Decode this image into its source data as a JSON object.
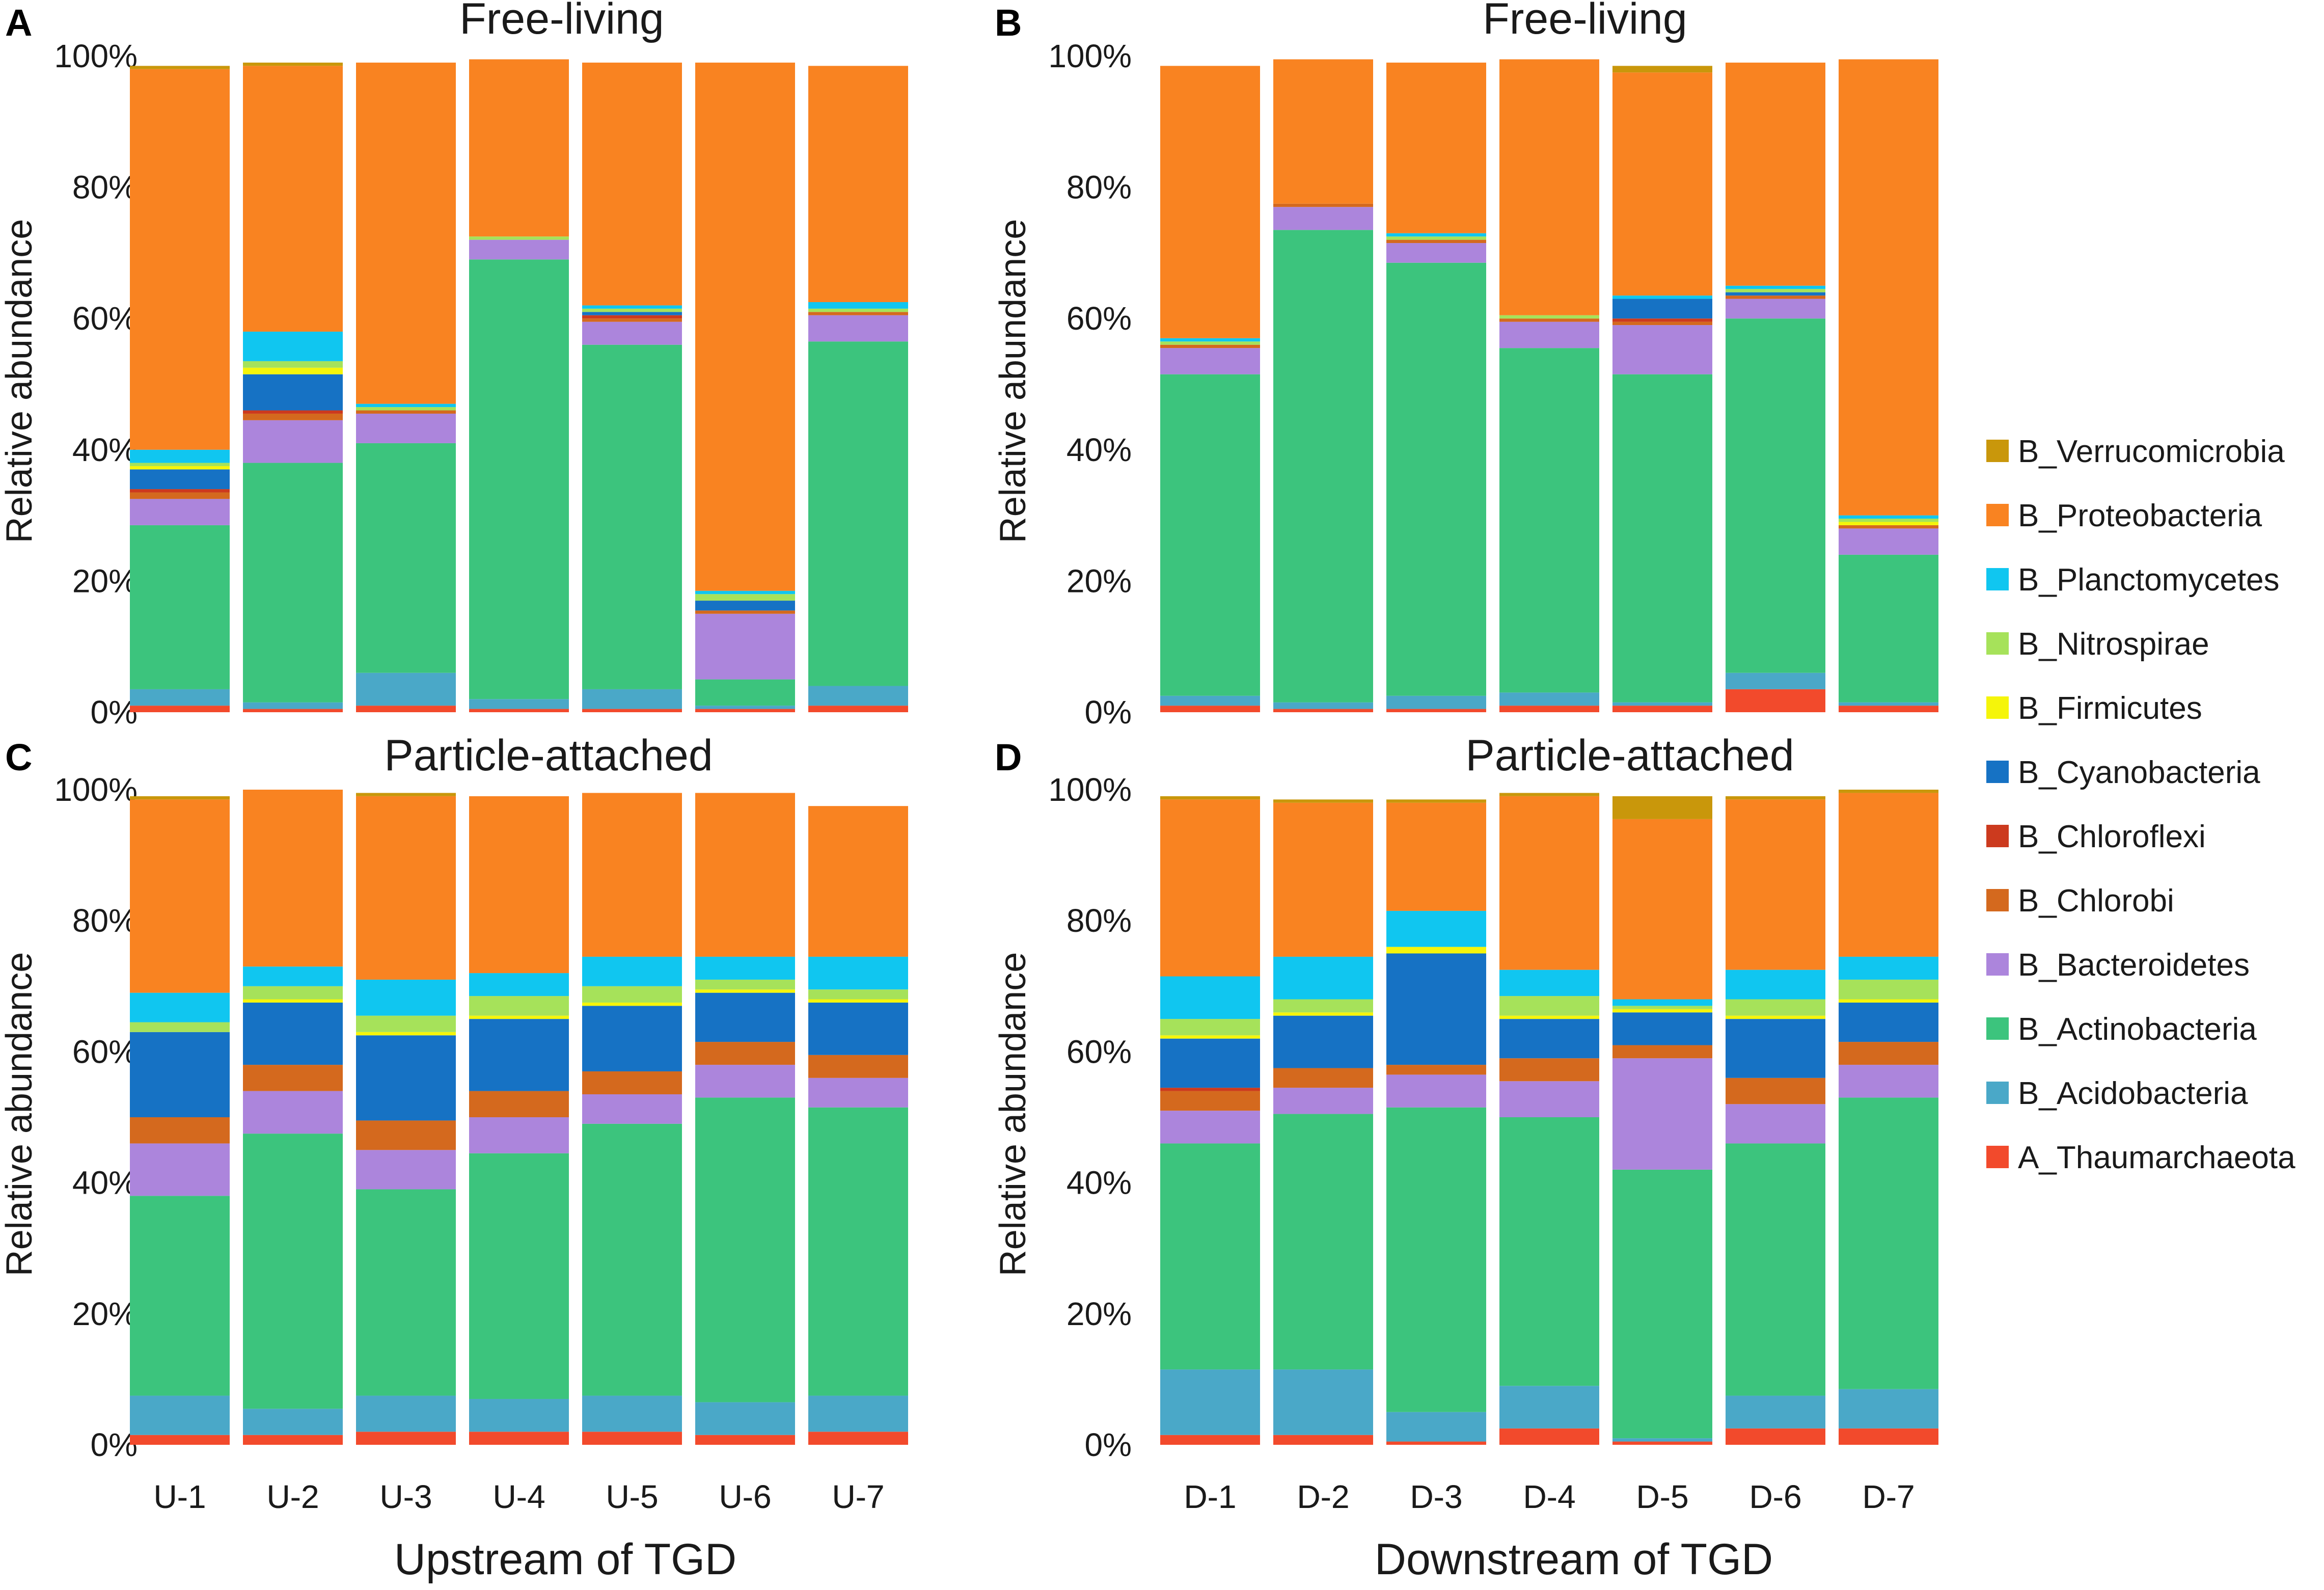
{
  "colors": {
    "A_Thaumarchaeota": "#f24a2c",
    "B_Acidobacteria": "#4aa8c8",
    "B_Actinobacteria": "#3cc47d",
    "B_Bacteroidetes": "#ac85dc",
    "B_Chlorobi": "#d4691e",
    "B_Chloroflexi": "#cc3a1e",
    "B_Cyanobacteria": "#1672c4",
    "B_Firmicutes": "#f5f50a",
    "B_Nitrospirae": "#a6e25a",
    "B_Planctomycetes": "#10c6f0",
    "B_Proteobacteria": "#f98321",
    "B_Verrucomicrobia": "#c9970b"
  },
  "legend": [
    "B_Verrucomicrobia",
    "B_Proteobacteria",
    "B_Planctomycetes",
    "B_Nitrospirae",
    "B_Firmicutes",
    "B_Cyanobacteria",
    "B_Chloroflexi",
    "B_Chlorobi",
    "B_Bacteroidetes",
    "B_Actinobacteria",
    "B_Acidobacteria",
    "A_Thaumarchaeota"
  ],
  "chart_data": [
    {
      "type": "bar",
      "stacked": true,
      "panel": "A",
      "title": "Free-living",
      "xlabel": "",
      "ylabel": "Relative abundance",
      "ylim": [
        0,
        100
      ],
      "yticks": [
        "0%",
        "20%",
        "40%",
        "60%",
        "80%",
        "100%"
      ],
      "categories": [
        "U-1",
        "U-2",
        "U-3",
        "U-4",
        "U-5",
        "U-6",
        "U-7"
      ],
      "series": [
        {
          "name": "A_Thaumarchaeota",
          "values": [
            1,
            0.5,
            1,
            0.5,
            0.5,
            0.5,
            1
          ]
        },
        {
          "name": "B_Acidobacteria",
          "values": [
            2.5,
            1,
            5,
            1.5,
            3,
            0.5,
            3
          ]
        },
        {
          "name": "B_Actinobacteria",
          "values": [
            25,
            36.5,
            35,
            67,
            52.5,
            4,
            52.5
          ]
        },
        {
          "name": "B_Bacteroidetes",
          "values": [
            4,
            6.5,
            4.5,
            3,
            3.5,
            10,
            4
          ]
        },
        {
          "name": "B_Chlorobi",
          "values": [
            1,
            1,
            0.5,
            0,
            0.5,
            0.5,
            0.5
          ]
        },
        {
          "name": "B_Chloroflexi",
          "values": [
            0.5,
            0.5,
            0,
            0,
            0.5,
            0,
            0
          ]
        },
        {
          "name": "B_Cyanobacteria",
          "values": [
            3,
            5.5,
            0,
            0,
            0.5,
            1.5,
            0
          ]
        },
        {
          "name": "B_Firmicutes",
          "values": [
            0.5,
            1,
            0,
            0,
            0,
            0,
            0
          ]
        },
        {
          "name": "B_Nitrospirae",
          "values": [
            0.5,
            1,
            0.5,
            0.5,
            0.5,
            1,
            0.5
          ]
        },
        {
          "name": "B_Planctomycetes",
          "values": [
            2,
            4.5,
            0.5,
            0,
            0.5,
            0.5,
            1
          ]
        },
        {
          "name": "B_Proteobacteria",
          "values": [
            58,
            40.5,
            52,
            27,
            37,
            80.5,
            36
          ]
        },
        {
          "name": "B_Verrucomicrobia",
          "values": [
            0.5,
            0.5,
            0,
            0,
            0,
            0,
            0
          ]
        }
      ]
    },
    {
      "type": "bar",
      "stacked": true,
      "panel": "B",
      "title": "Free-living",
      "xlabel": "",
      "ylabel": "Relative abundance",
      "ylim": [
        0,
        100
      ],
      "yticks": [
        "0%",
        "20%",
        "40%",
        "60%",
        "80%",
        "100%"
      ],
      "categories": [
        "D-1",
        "D-2",
        "D-3",
        "D-4",
        "D-5",
        "D-6",
        "D-7"
      ],
      "series": [
        {
          "name": "A_Thaumarchaeota",
          "values": [
            1,
            0.5,
            0.5,
            1,
            1,
            3.5,
            1
          ]
        },
        {
          "name": "B_Acidobacteria",
          "values": [
            1.5,
            1,
            2,
            2,
            0.5,
            2.5,
            0.5
          ]
        },
        {
          "name": "B_Actinobacteria",
          "values": [
            49,
            72,
            66,
            52.5,
            50,
            54,
            22.5
          ]
        },
        {
          "name": "B_Bacteroidetes",
          "values": [
            4,
            3.5,
            3,
            4,
            7.5,
            3,
            4
          ]
        },
        {
          "name": "B_Chlorobi",
          "values": [
            0.5,
            0.5,
            0.5,
            0.5,
            0.5,
            0.5,
            0.5
          ]
        },
        {
          "name": "B_Chloroflexi",
          "values": [
            0,
            0,
            0,
            0,
            0.5,
            0,
            0
          ]
        },
        {
          "name": "B_Cyanobacteria",
          "values": [
            0,
            0,
            0,
            0,
            3,
            0.5,
            0
          ]
        },
        {
          "name": "B_Firmicutes",
          "values": [
            0,
            0,
            0,
            0,
            0,
            0,
            0.5
          ]
        },
        {
          "name": "B_Nitrospirae",
          "values": [
            0.5,
            0,
            0.5,
            0.5,
            0,
            0.5,
            0.5
          ]
        },
        {
          "name": "B_Planctomycetes",
          "values": [
            0.5,
            0,
            0.5,
            0,
            0.5,
            0.5,
            0.5
          ]
        },
        {
          "name": "B_Proteobacteria",
          "values": [
            41.5,
            22,
            26,
            39,
            34,
            34,
            69.5
          ]
        },
        {
          "name": "B_Verrucomicrobia",
          "values": [
            0,
            0,
            0,
            0,
            1,
            0,
            0
          ]
        }
      ]
    },
    {
      "type": "bar",
      "stacked": true,
      "panel": "C",
      "title": "Particle-attached",
      "xlabel": "Upstream of TGD",
      "ylabel": "Relative abundance",
      "ylim": [
        0,
        100
      ],
      "yticks": [
        "0%",
        "20%",
        "40%",
        "60%",
        "80%",
        "100%"
      ],
      "categories": [
        "U-1",
        "U-2",
        "U-3",
        "U-4",
        "U-5",
        "U-6",
        "U-7"
      ],
      "series": [
        {
          "name": "A_Thaumarchaeota",
          "values": [
            1.5,
            1.5,
            2,
            2,
            2,
            1.5,
            2
          ]
        },
        {
          "name": "B_Acidobacteria",
          "values": [
            6,
            4,
            5.5,
            5,
            5.5,
            5,
            5.5
          ]
        },
        {
          "name": "B_Actinobacteria",
          "values": [
            30.5,
            42,
            31.5,
            37.5,
            41.5,
            46.5,
            44
          ]
        },
        {
          "name": "B_Bacteroidetes",
          "values": [
            8,
            6.5,
            6,
            5.5,
            4.5,
            5,
            4.5
          ]
        },
        {
          "name": "B_Chlorobi",
          "values": [
            4,
            4,
            4.5,
            4,
            3.5,
            3.5,
            3.5
          ]
        },
        {
          "name": "B_Chloroflexi",
          "values": [
            0,
            0,
            0,
            0,
            0,
            0,
            0
          ]
        },
        {
          "name": "B_Cyanobacteria",
          "values": [
            13,
            9.5,
            13,
            11,
            10,
            7.5,
            8
          ]
        },
        {
          "name": "B_Firmicutes",
          "values": [
            0,
            0.5,
            0.5,
            0.5,
            0.5,
            0.5,
            0.5
          ]
        },
        {
          "name": "B_Nitrospirae",
          "values": [
            1.5,
            2,
            2.5,
            3,
            2.5,
            1.5,
            1.5
          ]
        },
        {
          "name": "B_Planctomycetes",
          "values": [
            4.5,
            3,
            5.5,
            3.5,
            4.5,
            3.5,
            5
          ]
        },
        {
          "name": "B_Proteobacteria",
          "values": [
            29.5,
            27,
            28,
            27,
            25,
            25,
            23
          ]
        },
        {
          "name": "B_Verrucomicrobia",
          "values": [
            0.5,
            0,
            0.5,
            0,
            0,
            0,
            0
          ]
        }
      ]
    },
    {
      "type": "bar",
      "stacked": true,
      "panel": "D",
      "title": "Particle-attached",
      "xlabel": "Downstream of TGD",
      "ylabel": "Relative abundance",
      "ylim": [
        0,
        100
      ],
      "yticks": [
        "0%",
        "20%",
        "40%",
        "60%",
        "80%",
        "100%"
      ],
      "categories": [
        "D-1",
        "D-2",
        "D-3",
        "D-4",
        "D-5",
        "D-6",
        "D-7"
      ],
      "series": [
        {
          "name": "A_Thaumarchaeota",
          "values": [
            1.5,
            1.5,
            0.5,
            2.5,
            0.5,
            2.5,
            2.5
          ]
        },
        {
          "name": "B_Acidobacteria",
          "values": [
            10,
            10,
            4.5,
            6.5,
            0.5,
            5,
            6
          ]
        },
        {
          "name": "B_Actinobacteria",
          "values": [
            34.5,
            39,
            46.5,
            41,
            41,
            38.5,
            44.5
          ]
        },
        {
          "name": "B_Bacteroidetes",
          "values": [
            5,
            4,
            5,
            5.5,
            17,
            6,
            5
          ]
        },
        {
          "name": "B_Chlorobi",
          "values": [
            3,
            3,
            1.5,
            3.5,
            2,
            4,
            3.5
          ]
        },
        {
          "name": "B_Chloroflexi",
          "values": [
            0.5,
            0,
            0,
            0,
            0,
            0,
            0
          ]
        },
        {
          "name": "B_Cyanobacteria",
          "values": [
            7.5,
            8,
            17,
            6,
            5,
            9,
            6
          ]
        },
        {
          "name": "B_Firmicutes",
          "values": [
            0.5,
            0.5,
            1,
            0.5,
            0.5,
            0.5,
            0.5
          ]
        },
        {
          "name": "B_Nitrospirae",
          "values": [
            2.5,
            2,
            0,
            3,
            0.5,
            2.5,
            3
          ]
        },
        {
          "name": "B_Planctomycetes",
          "values": [
            6.5,
            6.5,
            5.5,
            4,
            1,
            4.5,
            3.5
          ]
        },
        {
          "name": "B_Proteobacteria",
          "values": [
            27,
            23.5,
            16.5,
            26.5,
            27.5,
            26,
            25
          ]
        },
        {
          "name": "B_Verrucomicrobia",
          "values": [
            0.5,
            0.5,
            0.5,
            0.5,
            3.5,
            0.5,
            0.5
          ]
        }
      ]
    }
  ]
}
